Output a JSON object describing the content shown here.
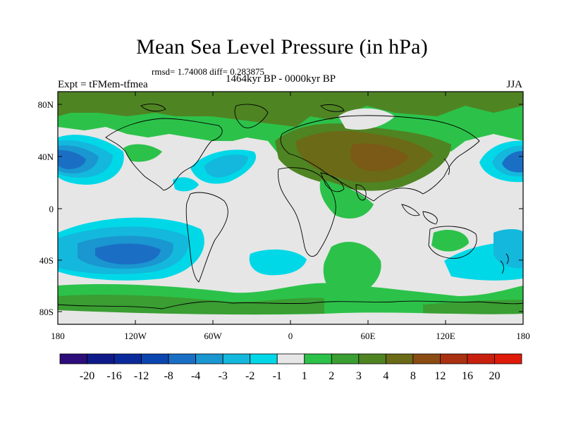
{
  "title": "Mean Sea Level Pressure (in hPa)",
  "stats": "rmsd= 1.74008 diff= 0.283875",
  "period": "1464kyr BP - 0000kyr BP",
  "experiment": "Expt = tFMem-tfmea",
  "season": "JJA",
  "lat_ticks": [
    "80N",
    "40N",
    "0",
    "40S",
    "80S"
  ],
  "lon_ticks": [
    "180",
    "120W",
    "60W",
    "0",
    "60E",
    "120E",
    "180"
  ],
  "colorbar": {
    "labels": [
      "-20",
      "-16",
      "-12",
      "-8",
      "-4",
      "-3",
      "-2",
      "-1",
      "1",
      "2",
      "3",
      "4",
      "8",
      "12",
      "16",
      "20"
    ],
    "colors": [
      "#2c0d7a",
      "#0f1a8a",
      "#0a2a9c",
      "#0b45b0",
      "#1a6fc5",
      "#1a96d1",
      "#14b8dc",
      "#00d8e8",
      "#e6e6e6",
      "#2cc24a",
      "#3a9e32",
      "#4f8423",
      "#6b6a17",
      "#8a4c12",
      "#a93010",
      "#c8200e",
      "#e01a08"
    ]
  }
}
